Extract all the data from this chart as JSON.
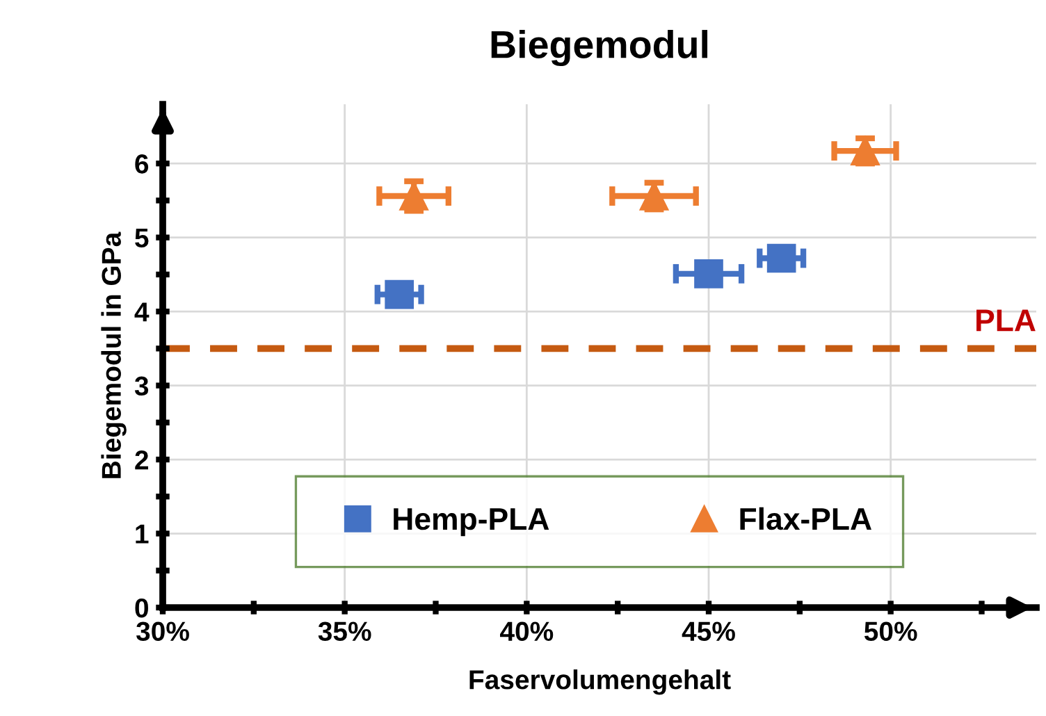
{
  "chart_data": {
    "type": "scatter",
    "title": "Biegemodul",
    "xlabel": "Faservolumengehalt",
    "ylabel": "Biegemodul in GPa",
    "xlim": [
      30,
      54
    ],
    "ylim": [
      0,
      6.8
    ],
    "xticks": [
      {
        "value": 30,
        "label": "30%"
      },
      {
        "value": 32.5,
        "label": null
      },
      {
        "value": 35,
        "label": "35%"
      },
      {
        "value": 37.5,
        "label": null
      },
      {
        "value": 40,
        "label": "40%"
      },
      {
        "value": 42.5,
        "label": null
      },
      {
        "value": 45,
        "label": "45%"
      },
      {
        "value": 47.5,
        "label": null
      },
      {
        "value": 50,
        "label": "50%"
      },
      {
        "value": 52.5,
        "label": null
      }
    ],
    "yticks": [
      0,
      {
        "value": 0.5,
        "label": null
      },
      1,
      {
        "value": 1.5,
        "label": null
      },
      2,
      {
        "value": 2.5,
        "label": null
      },
      3,
      {
        "value": 3.5,
        "label": null
      },
      4,
      {
        "value": 4.5,
        "label": null
      },
      5,
      {
        "value": 5.5,
        "label": null
      },
      6,
      {
        "value": 6.5,
        "label": null
      }
    ],
    "grid": true,
    "legend": "bottom",
    "series": [
      {
        "name": "Hemp-PLA",
        "color": "#4472c4",
        "marker": "square",
        "x": [
          36.5,
          45.0,
          47.0
        ],
        "values": [
          4.23,
          4.51,
          4.72
        ],
        "xerrors": [
          0.6,
          0.9,
          0.6
        ],
        "errors": [
          0.1,
          0.1,
          0.1
        ]
      },
      {
        "name": "Flax-PLA",
        "color": "#ed7d31",
        "marker": "triangle",
        "x": [
          36.9,
          43.5,
          49.3
        ],
        "values": [
          5.56,
          5.56,
          6.17
        ],
        "xerrors": [
          0.95,
          1.15,
          0.85
        ],
        "errors": [
          0.2,
          0.18,
          0.17
        ]
      }
    ],
    "ref_lines": [
      {
        "axis": "y",
        "value": 3.5,
        "label": "PLA",
        "color": "#c55a11",
        "line_style": "dashed"
      }
    ]
  }
}
